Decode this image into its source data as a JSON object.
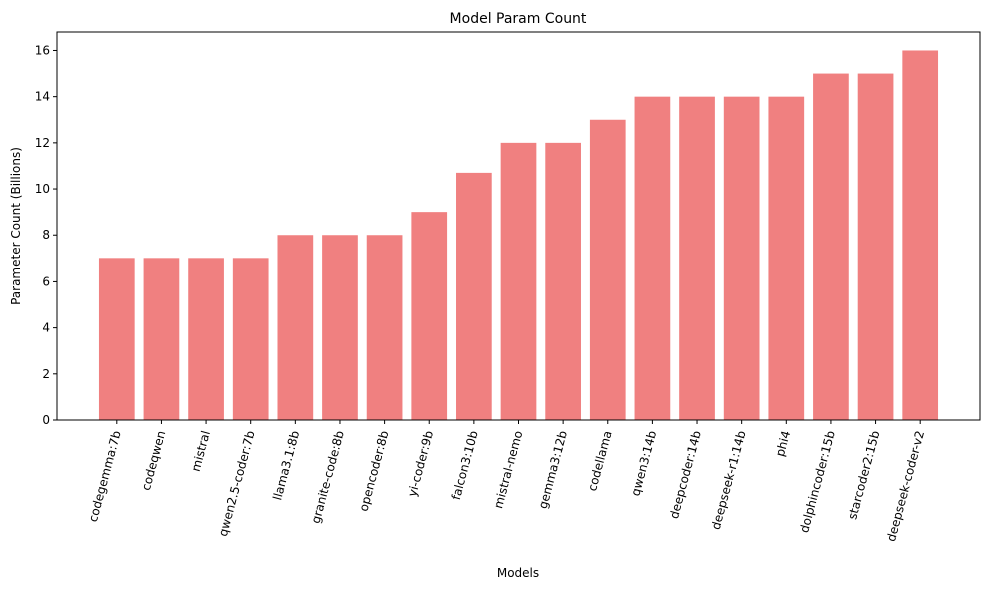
{
  "chart_data": {
    "type": "bar",
    "title": "Model Param Count",
    "x_label": "Models",
    "y_label": "Parameter Count (Billions)",
    "categories": [
      "codegemma:7b",
      "codeqwen",
      "mistral",
      "qwen2.5-coder:7b",
      "llama3.1:8b",
      "granite-code:8b",
      "opencoder:8b",
      "yi-coder:9b",
      "falcon3:10b",
      "mistral-nemo",
      "gemma3:12b",
      "codellama",
      "qwen3:14b",
      "deepcoder:14b",
      "deepseek-r1:14b",
      "phi4",
      "dolphincoder:15b",
      "starcoder2:15b",
      "deepseek-coder-v2"
    ],
    "values": [
      7,
      7,
      7,
      7,
      8,
      8,
      8,
      9,
      10.7,
      12,
      12,
      13,
      14,
      14,
      14,
      14,
      15,
      15,
      16
    ],
    "color": "#f08080",
    "ylim": [
      0,
      16.8
    ],
    "yticks": [
      0,
      2,
      4,
      6,
      8,
      10,
      12,
      14,
      16
    ],
    "grid": false
  }
}
